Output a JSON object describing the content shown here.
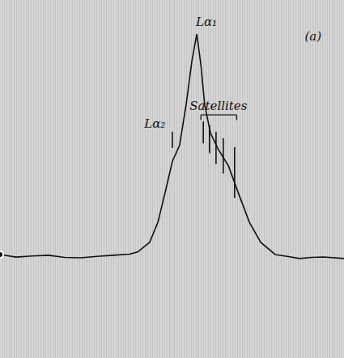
{
  "chart_data": {
    "type": "line",
    "tick_labels": false,
    "grid": false,
    "xlim": [
      0,
      100
    ],
    "ylim": [
      0,
      100
    ],
    "xticks": [],
    "yticks": [],
    "color": "#111111",
    "x": [
      0,
      4.7,
      9.4,
      14.1,
      18.8,
      23.5,
      28.2,
      32.9,
      37.6,
      40,
      43.5,
      45.9,
      48.2,
      50.1,
      52.2,
      54.1,
      55.8,
      57.2,
      58.4,
      59.5,
      61.2,
      63.5,
      66.4,
      69.4,
      72.5,
      75.8,
      80,
      83.5,
      87.1,
      90.6,
      94.1,
      100
    ],
    "values": [
      28.9,
      28.2,
      28.5,
      28.7,
      28.1,
      28,
      28.4,
      28.7,
      29,
      29.6,
      32.3,
      37.9,
      47,
      54.9,
      59.4,
      70.7,
      83.1,
      90.5,
      81.9,
      70.7,
      62.8,
      58.2,
      53.7,
      45.8,
      37.9,
      32.3,
      28.9,
      28.4,
      27.8,
      28.1,
      28.2,
      27.8
    ],
    "markers": [
      {
        "x": 50.1,
        "y_top": 63.2,
        "y_bottom": 58.7
      },
      {
        "x": 59.1,
        "y_top": 66.1,
        "y_bottom": 60.0
      },
      {
        "x": 60.9,
        "y_top": 65.0,
        "y_bottom": 57.2
      },
      {
        "x": 62.8,
        "y_top": 63.2,
        "y_bottom": 54.2
      },
      {
        "x": 64.9,
        "y_top": 61.4,
        "y_bottom": 51.5
      },
      {
        "x": 68.2,
        "y_top": 58.9,
        "y_bottom": 44.7
      }
    ],
    "annotations": [
      {
        "text": "Lα₁",
        "x": 60,
        "y": 94
      },
      {
        "text": "Lα₂",
        "x": 45,
        "y": 65.5
      },
      {
        "text": "Satellites",
        "x": 63.5,
        "y": 70.6,
        "span": [
          58.4,
          68.8
        ],
        "span_y": 67.9
      },
      {
        "text": "(a)",
        "x": 91,
        "y": 90
      }
    ]
  }
}
